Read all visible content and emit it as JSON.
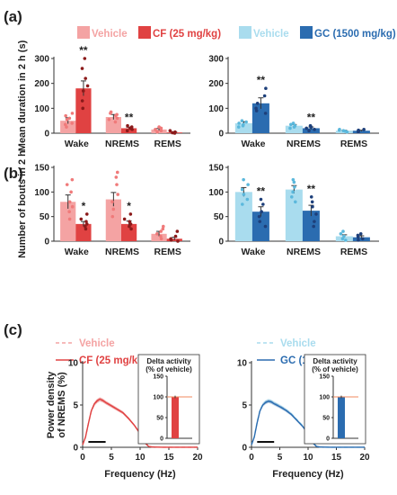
{
  "panels": {
    "a": "(a)",
    "b": "(b)",
    "c": "(c)"
  },
  "colors": {
    "vehicle_red": "#f4a3a3",
    "cf": "#e04242",
    "cf_dark": "#8b1a1a",
    "vehicle_blue": "#a9dcee",
    "gc": "#2b6cb0",
    "gc_dark": "#1d3f7a"
  },
  "legend": {
    "a_left": [
      "Vehicle",
      "CF (25 mg/kg)"
    ],
    "a_right": [
      "Vehicle",
      "GC (1500 mg/kg)"
    ],
    "c_left": [
      "Vehicle",
      "CF (25 mg/kg)"
    ],
    "c_right": [
      "Vehicle",
      "GC (1500 mg/kg)"
    ]
  },
  "chart_data": [
    {
      "id": "a-left",
      "type": "bar",
      "ylabel": "Mean duration in 2 h (s)",
      "ylim": [
        0,
        300
      ],
      "yticks": [
        0,
        100,
        200,
        300
      ],
      "categories": [
        "Wake",
        "NREMS",
        "REMS"
      ],
      "series": [
        {
          "name": "Vehicle",
          "values": [
            50,
            65,
            15
          ],
          "errors": [
            12,
            10,
            4
          ],
          "color": "#f4a3a3",
          "dot": "#f07a7a"
        },
        {
          "name": "CF (25 mg/kg)",
          "values": [
            180,
            20,
            3
          ],
          "errors": [
            30,
            4,
            2
          ],
          "color": "#e04242",
          "dot": "#8b1a1a"
        }
      ],
      "significance": [
        {
          "category": "Wake",
          "series": 1,
          "label": "**"
        },
        {
          "category": "NREMS",
          "series": 1,
          "label": "**"
        }
      ],
      "points": [
        [
          [
            25,
            35,
            40,
            55,
            60,
            70,
            80
          ],
          [
            45,
            55,
            60,
            70,
            75,
            80,
            85
          ],
          [
            5,
            10,
            15,
            20,
            25
          ]
        ],
        [
          [
            100,
            130,
            170,
            190,
            220,
            260,
            300
          ],
          [
            10,
            15,
            20,
            25,
            30
          ],
          [
            0,
            2,
            5,
            10
          ]
        ]
      ]
    },
    {
      "id": "a-right",
      "type": "bar",
      "ylim": [
        0,
        300
      ],
      "yticks": [
        0,
        100,
        200,
        300
      ],
      "categories": [
        "Wake",
        "NREMS",
        "REMS"
      ],
      "series": [
        {
          "name": "Vehicle",
          "values": [
            40,
            30,
            10
          ],
          "errors": [
            6,
            5,
            2
          ],
          "color": "#a9dcee",
          "dot": "#5bb8dc"
        },
        {
          "name": "GC (1500 mg/kg)",
          "values": [
            120,
            20,
            10
          ],
          "errors": [
            22,
            5,
            2
          ],
          "color": "#2b6cb0",
          "dot": "#1d3f7a"
        }
      ],
      "significance": [
        {
          "category": "Wake",
          "series": 1,
          "label": "**"
        },
        {
          "category": "NREMS",
          "series": 1,
          "label": "**"
        }
      ],
      "points": [
        [
          [
            25,
            30,
            35,
            40,
            45,
            50
          ],
          [
            20,
            25,
            30,
            35,
            40
          ],
          [
            5,
            8,
            10,
            12,
            15
          ]
        ],
        [
          [
            80,
            90,
            100,
            120,
            150,
            180
          ],
          [
            10,
            15,
            20,
            25,
            30
          ],
          [
            5,
            8,
            10,
            12,
            15
          ]
        ]
      ]
    },
    {
      "id": "b-left",
      "type": "bar",
      "ylabel": "Number of bouts in 2 h",
      "ylim": [
        0,
        150
      ],
      "yticks": [
        0,
        50,
        100,
        150
      ],
      "categories": [
        "Wake",
        "NREMS",
        "REMS"
      ],
      "series": [
        {
          "name": "Vehicle",
          "values": [
            80,
            85,
            15
          ],
          "errors": [
            14,
            14,
            5
          ],
          "color": "#f4a3a3",
          "dot": "#f07a7a"
        },
        {
          "name": "CF (25 mg/kg)",
          "values": [
            35,
            35,
            5
          ],
          "errors": [
            5,
            6,
            3
          ],
          "color": "#e04242",
          "dot": "#8b1a1a"
        }
      ],
      "significance": [
        {
          "category": "Wake",
          "series": 1,
          "label": "*"
        },
        {
          "category": "NREMS",
          "series": 1,
          "label": "*"
        }
      ],
      "points": [
        [
          [
            45,
            60,
            70,
            80,
            100,
            115,
            125
          ],
          [
            50,
            65,
            80,
            95,
            115,
            130,
            140
          ],
          [
            5,
            10,
            15,
            20,
            25,
            30
          ]
        ],
        [
          [
            25,
            30,
            35,
            40,
            45,
            55
          ],
          [
            25,
            30,
            35,
            40,
            45,
            55
          ],
          [
            0,
            2,
            5,
            10,
            20
          ]
        ]
      ]
    },
    {
      "id": "b-right",
      "type": "bar",
      "ylim": [
        0,
        150
      ],
      "yticks": [
        0,
        50,
        100,
        150
      ],
      "categories": [
        "Wake",
        "NREMS",
        "REMS"
      ],
      "series": [
        {
          "name": "Vehicle",
          "values": [
            100,
            105,
            10
          ],
          "errors": [
            9,
            8,
            3
          ],
          "color": "#a9dcee",
          "dot": "#5bb8dc"
        },
        {
          "name": "GC (1500 mg/kg)",
          "values": [
            60,
            62,
            8
          ],
          "errors": [
            10,
            11,
            3
          ],
          "color": "#2b6cb0",
          "dot": "#1d3f7a"
        }
      ],
      "significance": [
        {
          "category": "Wake",
          "series": 1,
          "label": "**"
        },
        {
          "category": "NREMS",
          "series": 1,
          "label": "**"
        }
      ],
      "points": [
        [
          [
            75,
            85,
            95,
            105,
            115,
            125
          ],
          [
            80,
            90,
            100,
            110,
            120,
            125
          ],
          [
            2,
            5,
            10,
            15,
            20
          ]
        ],
        [
          [
            30,
            40,
            50,
            60,
            75,
            85
          ],
          [
            30,
            40,
            55,
            70,
            80,
            90
          ],
          [
            2,
            5,
            8,
            12,
            15
          ]
        ]
      ]
    },
    {
      "id": "c-left",
      "type": "line",
      "ylabel": "Power density of NREMS (%)",
      "xlabel": "Frequency (Hz)",
      "xlim": [
        0,
        20
      ],
      "ylim": [
        0,
        10
      ],
      "xticks": [
        0,
        5,
        10,
        15,
        20
      ],
      "yticks": [
        0,
        5,
        10
      ],
      "x": [
        0,
        0.5,
        1,
        1.5,
        2,
        2.5,
        3,
        3.5,
        4,
        5,
        6,
        7,
        8,
        9,
        10,
        10.5,
        11,
        11.5,
        12,
        13,
        14,
        15,
        16,
        17,
        18,
        19,
        20
      ],
      "series": [
        {
          "name": "Vehicle",
          "values": [
            0.3,
            1.2,
            2.8,
            4.2,
            5.0,
            5.4,
            5.6,
            5.5,
            5.3,
            4.9,
            4.5,
            4.1,
            3.4,
            2.6,
            1.7,
            1.1,
            0.5,
            0.15,
            0.05,
            0.02,
            0.01,
            0.01,
            0.01,
            0.01,
            0.01,
            0.01,
            0.01
          ],
          "color": "#f4a3a3",
          "dash": true
        },
        {
          "name": "CF (25 mg/kg)",
          "values": [
            0.3,
            1.2,
            2.8,
            4.3,
            5.1,
            5.5,
            5.7,
            5.55,
            5.3,
            4.9,
            4.5,
            4.1,
            3.4,
            2.6,
            1.6,
            1.0,
            0.4,
            0.1,
            0.04,
            0.02,
            0.01,
            0.01,
            0.01,
            0.01,
            0.01,
            0.01,
            0.01
          ],
          "color": "#e04242",
          "dash": false
        }
      ],
      "bar_range": [
        1,
        4
      ],
      "inset": {
        "title": [
          "Delta activity",
          "(% of vehicle)"
        ],
        "ylim": [
          0,
          150
        ],
        "yticks": [
          0,
          50,
          100,
          150
        ],
        "value": 100,
        "error": 3,
        "color": "#e04242"
      }
    },
    {
      "id": "c-right",
      "type": "line",
      "xlabel": "Frequency (Hz)",
      "xlim": [
        0,
        20
      ],
      "ylim": [
        0,
        10
      ],
      "xticks": [
        0,
        5,
        10,
        15,
        20
      ],
      "yticks": [
        0,
        5,
        10
      ],
      "x": [
        0,
        0.5,
        1,
        1.5,
        2,
        2.5,
        3,
        3.5,
        4,
        5,
        6,
        7,
        8,
        9,
        10,
        10.5,
        11,
        11.5,
        12,
        13,
        14,
        15,
        16,
        17,
        18,
        19,
        20
      ],
      "series": [
        {
          "name": "Vehicle",
          "values": [
            0.3,
            1.3,
            3.0,
            4.4,
            5.1,
            5.4,
            5.55,
            5.45,
            5.25,
            4.9,
            4.5,
            4.0,
            3.3,
            2.6,
            1.7,
            1.1,
            0.5,
            0.15,
            0.05,
            0.02,
            0.01,
            0.01,
            0.01,
            0.01,
            0.01,
            0.01,
            0.01
          ],
          "color": "#a9dcee",
          "dash": true
        },
        {
          "name": "GC (1500 mg/kg)",
          "values": [
            0.3,
            1.2,
            2.9,
            4.3,
            5.0,
            5.3,
            5.45,
            5.35,
            5.15,
            4.8,
            4.4,
            3.9,
            3.2,
            2.5,
            1.6,
            1.0,
            0.4,
            0.1,
            0.04,
            0.02,
            0.01,
            0.01,
            0.01,
            0.01,
            0.01,
            0.01,
            0.01
          ],
          "color": "#2b6cb0",
          "dash": false
        }
      ],
      "bar_range": [
        1,
        4
      ],
      "inset": {
        "title": [
          "Delta activity",
          "(% of vehicle)"
        ],
        "ylim": [
          0,
          150
        ],
        "yticks": [
          0,
          50,
          100,
          150
        ],
        "value": 100,
        "error": 3,
        "color": "#2b6cb0"
      }
    }
  ]
}
